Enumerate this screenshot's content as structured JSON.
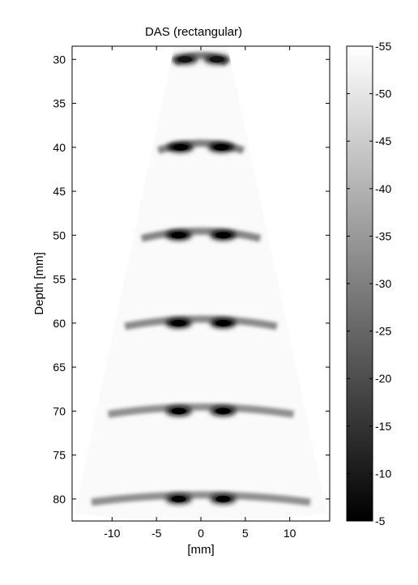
{
  "chart_data": {
    "type": "heatmap",
    "title": "DAS  (rectangular)",
    "xlabel": "[mm]",
    "ylabel": "Depth [mm]",
    "xlim": [
      -14.5,
      14.5
    ],
    "ylim": [
      82.5,
      28.5
    ],
    "y_axis_reversed": true,
    "x_ticks": [
      -10,
      -5,
      0,
      5,
      10
    ],
    "x_tick_labels": [
      "-10",
      "-5",
      "0",
      "5",
      "10"
    ],
    "y_ticks": [
      30,
      35,
      40,
      45,
      50,
      55,
      60,
      65,
      70,
      75,
      80
    ],
    "y_tick_labels": [
      "30",
      "35",
      "40",
      "45",
      "50",
      "55",
      "60",
      "65",
      "70",
      "75",
      "80"
    ],
    "sector": {
      "apex_depth_mm": 28.9,
      "top_half_width_mm": 3.0,
      "bottom_half_width_mm": 14.2,
      "bottom_depth_mm": 82.5
    },
    "colormap": "gray",
    "colorbar": {
      "range": [
        -55,
        -5
      ],
      "ticks": [
        -5,
        -10,
        -15,
        -20,
        -25,
        -30,
        -35,
        -40,
        -45,
        -50,
        -55
      ],
      "tick_labels": [
        "-5",
        "-10",
        "-15",
        "-20",
        "-25",
        "-30",
        "-35",
        "-40",
        "-45",
        "-50",
        "-55"
      ]
    },
    "background_db": -55,
    "point_targets": [
      {
        "depth_mm": 30,
        "lateral_mm": [
          -1.8,
          1.8
        ],
        "peak_db": -12,
        "sidelobe_db": -30
      },
      {
        "depth_mm": 40,
        "lateral_mm": [
          -2.3,
          2.3
        ],
        "peak_db": -5,
        "sidelobe_db": -30
      },
      {
        "depth_mm": 50,
        "lateral_mm": [
          -2.5,
          2.5
        ],
        "peak_db": -5,
        "sidelobe_db": -31
      },
      {
        "depth_mm": 60,
        "lateral_mm": [
          -2.5,
          2.5
        ],
        "peak_db": -6,
        "sidelobe_db": -32
      },
      {
        "depth_mm": 70,
        "lateral_mm": [
          -2.5,
          2.5
        ],
        "peak_db": -8,
        "sidelobe_db": -33
      },
      {
        "depth_mm": 80,
        "lateral_mm": [
          -2.5,
          2.5
        ],
        "peak_db": -9,
        "sidelobe_db": -33
      }
    ]
  }
}
